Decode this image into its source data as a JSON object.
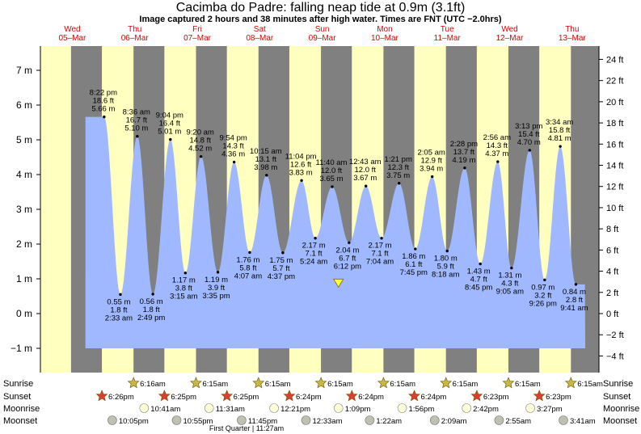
{
  "title": "Cacimba do Padre: falling  neap tide at 0.9m (3.1ft)",
  "subtitle": "Image captured 2 hours and 38 minutes after high water. Times are FNT (UTC −2.0hrs)",
  "colors": {
    "night": "#808080",
    "day": "#ffffc0",
    "water": "#a0b8ff",
    "date": "#e00000"
  },
  "chart_data": {
    "type": "area",
    "days": [
      {
        "dow": "Wed",
        "date": "05–Mar"
      },
      {
        "dow": "Thu",
        "date": "06–Mar"
      },
      {
        "dow": "Fri",
        "date": "07–Mar"
      },
      {
        "dow": "Sat",
        "date": "08–Mar"
      },
      {
        "dow": "Sun",
        "date": "09–Mar"
      },
      {
        "dow": "Mon",
        "date": "10–Mar"
      },
      {
        "dow": "Tue",
        "date": "11–Mar"
      },
      {
        "dow": "Wed",
        "date": "12–Mar"
      },
      {
        "dow": "Thu",
        "date": "13–Mar"
      }
    ],
    "ylim_m": [
      -1.3,
      7.6
    ],
    "left_ticks": [
      "−1 m",
      "0 m",
      "1 m",
      "2 m",
      "3 m",
      "4 m",
      "5 m",
      "6 m",
      "7 m"
    ],
    "right_ticks": [
      "−4 ft",
      "−2 ft",
      "0 ft",
      "2 ft",
      "4 ft",
      "6 ft",
      "8 ft",
      "10 ft",
      "12 ft",
      "14 ft",
      "16 ft",
      "18 ft",
      "20 ft",
      "22 ft",
      "24 ft"
    ],
    "highs": [
      {
        "h": 0.8,
        "time": "8:22 pm",
        "ft": "18.6 ft",
        "m": "5.66 m"
      },
      {
        "h": 1.33,
        "time": "8:36 am",
        "ft": "16.7 ft",
        "m": "5.10 m"
      },
      {
        "h": 1.86,
        "time": "9:04 pm",
        "ft": "16.4 ft",
        "m": "5.01 m"
      },
      {
        "h": 2.35,
        "time": "9:20 am",
        "ft": "14.8 ft",
        "m": "4.52 m"
      },
      {
        "h": 2.88,
        "time": "9:54 pm",
        "ft": "14.3 ft",
        "m": "4.36 m"
      },
      {
        "h": 3.4,
        "time": "10:15 am",
        "ft": "13.1 ft",
        "m": "3.98 m"
      },
      {
        "h": 3.96,
        "time": "11:04 pm",
        "ft": "12.6 ft",
        "m": "3.83 m"
      },
      {
        "h": 4.45,
        "time": "11:40 am",
        "ft": "12.0 ft",
        "m": "3.65 m"
      },
      {
        "h": 4.99,
        "time": "12:43 am",
        "ft": "12.0 ft",
        "m": "3.67 m"
      },
      {
        "h": 5.52,
        "time": "1:21 pm",
        "ft": "12.3 ft",
        "m": "3.75 m"
      },
      {
        "h": 6.05,
        "time": "2:05 am",
        "ft": "12.9 ft",
        "m": "3.94 m"
      },
      {
        "h": 6.57,
        "time": "2:28 pm",
        "ft": "13.7 ft",
        "m": "4.19 m"
      },
      {
        "h": 7.1,
        "time": "2:56 am",
        "ft": "14.3 ft",
        "m": "4.37 m"
      },
      {
        "h": 7.61,
        "time": "3:13 pm",
        "ft": "15.4 ft",
        "m": "4.70 m"
      },
      {
        "h": 8.1,
        "time": "3:34 am",
        "ft": "15.8 ft",
        "m": "4.81 m"
      }
    ],
    "lows": [
      {
        "h": 1.06,
        "time": "2:33 am",
        "ft": "1.8 ft",
        "m": "0.55 m"
      },
      {
        "h": 1.58,
        "time": "2:49 pm",
        "ft": "1.8 ft",
        "m": "0.56 m"
      },
      {
        "h": 2.1,
        "time": "3:15 am",
        "ft": "3.8 ft",
        "m": "1.17 m"
      },
      {
        "h": 2.62,
        "time": "3:35 pm",
        "ft": "3.9 ft",
        "m": "1.19 m"
      },
      {
        "h": 3.13,
        "time": "4:07 am",
        "ft": "5.8 ft",
        "m": "1.76 m"
      },
      {
        "h": 3.66,
        "time": "4:37 pm",
        "ft": "5.7 ft",
        "m": "1.75 m"
      },
      {
        "h": 4.18,
        "time": "5:24 am",
        "ft": "7.1 ft",
        "m": "2.17 m"
      },
      {
        "h": 4.72,
        "time": "6:12 pm",
        "ft": "6.7 ft",
        "m": "2.04 m"
      },
      {
        "h": 5.24,
        "time": "7:04 am",
        "ft": "7.1 ft",
        "m": "2.17 m"
      },
      {
        "h": 5.78,
        "time": "7:45 pm",
        "ft": "6.1 ft",
        "m": "1.86 m"
      },
      {
        "h": 6.29,
        "time": "8:18 am",
        "ft": "5.9 ft",
        "m": "1.80 m"
      },
      {
        "h": 6.82,
        "time": "8:45 pm",
        "ft": "4.7 ft",
        "m": "1.43 m"
      },
      {
        "h": 7.32,
        "time": "9:05 am",
        "ft": "4.3 ft",
        "m": "1.31 m"
      },
      {
        "h": 7.85,
        "time": "9:26 pm",
        "ft": "3.2 ft",
        "m": "0.97 m"
      },
      {
        "h": 8.35,
        "time": "9:41 am",
        "ft": "2.8 ft",
        "m": "0.84 m"
      }
    ],
    "current_level": {
      "h": 4.55,
      "m": 0.9
    },
    "sunrise": [
      "6:16am",
      "6:15am",
      "6:15am",
      "6:15am",
      "6:15am",
      "6:15am",
      "6:15am",
      "6:15am"
    ],
    "sunset": [
      "6:26pm",
      "6:25pm",
      "6:25pm",
      "6:24pm",
      "6:24pm",
      "6:24pm",
      "6:23pm",
      "6:23pm"
    ],
    "moonrise": [
      "10:41am",
      "11:31am",
      "12:21pm",
      "1:09pm",
      "1:56pm",
      "2:42pm",
      "3:27pm"
    ],
    "moonset": [
      "10:05pm",
      "10:55pm",
      "11:45pm",
      "12:33am",
      "1:22am",
      "2:09am",
      "2:55am",
      "3:41am"
    ],
    "row_labels": [
      "Sunrise",
      "Sunset",
      "Moonrise",
      "Moonset"
    ],
    "phase_note": "First Quarter | 11:27am"
  }
}
